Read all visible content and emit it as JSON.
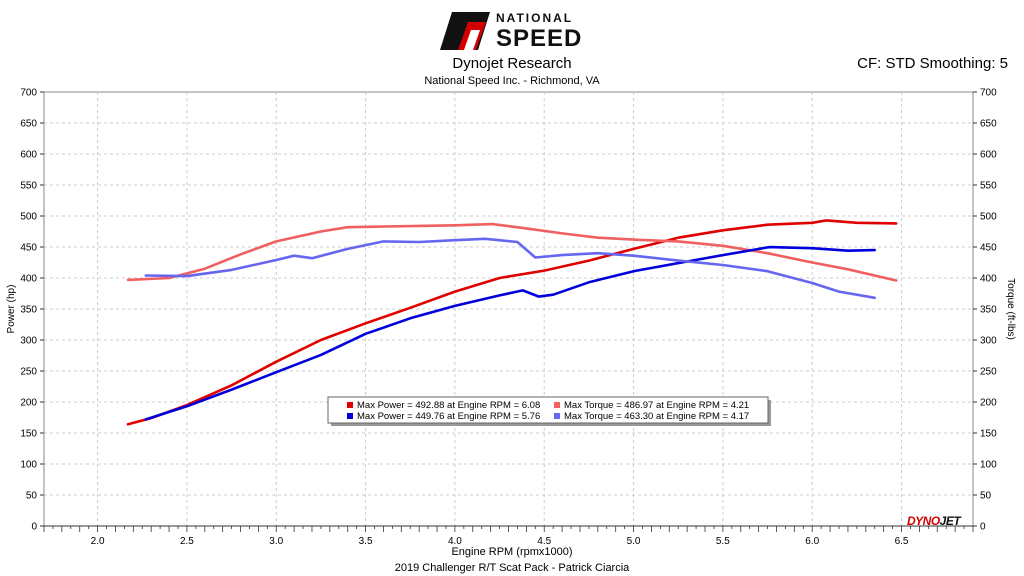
{
  "logo": {
    "line1": "NATIONAL",
    "line2": "SPEED"
  },
  "header": {
    "title": "Dynojet Research",
    "subtitle": "National Speed Inc. - Richmond, VA",
    "cf": "CF: STD Smoothing: 5"
  },
  "footer": "2019 Challenger R/T Scat Pack - Patrick Ciarcia",
  "brand": {
    "part1": "DYNO",
    "part2": "JET"
  },
  "colors": {
    "power1": "#e00000",
    "torque1": "#f06060",
    "power2": "#0000dd",
    "torque2": "#6666f0",
    "grid": "#cccccc",
    "legend_bg": "#ffffff"
  },
  "chart_data": {
    "type": "line",
    "xlabel": "Engine RPM (rpmx1000)",
    "ylabel_left": "Power (hp)",
    "ylabel_right": "Torque (ft-lbs)",
    "xlim": [
      1.7,
      6.9
    ],
    "ylim": [
      0,
      700
    ],
    "xticks": [
      2.0,
      2.5,
      3.0,
      3.5,
      4.0,
      4.5,
      5.0,
      5.5,
      6.0,
      6.5
    ],
    "xtick_labels": [
      "2.0",
      "2.5",
      "3.0",
      "3.5",
      "4.0",
      "4.5",
      "5.0",
      "5.5",
      "6.0",
      "6.5"
    ],
    "yticks": [
      0,
      50,
      100,
      150,
      200,
      250,
      300,
      350,
      400,
      450,
      500,
      550,
      600,
      650,
      700
    ],
    "ytick_labels": [
      "0",
      "50",
      "100",
      "150",
      "200",
      "250",
      "300",
      "350",
      "400",
      "450",
      "500",
      "550",
      "600",
      "650",
      "700"
    ],
    "grid": true,
    "legend": [
      "Max Power = 492.88 at Engine RPM = 6.08",
      "Max Torque = 486.97 at Engine RPM = 4.21",
      "Max Power = 449.76 at Engine RPM = 5.76",
      "Max Torque = 463.30 at Engine RPM = 4.17"
    ],
    "series": [
      {
        "key": "power1",
        "points": [
          [
            2.17,
            164
          ],
          [
            2.3,
            174
          ],
          [
            2.5,
            195
          ],
          [
            2.75,
            227
          ],
          [
            3.0,
            265
          ],
          [
            3.25,
            300
          ],
          [
            3.5,
            327
          ],
          [
            3.75,
            352
          ],
          [
            4.0,
            378
          ],
          [
            4.25,
            400
          ],
          [
            4.5,
            412
          ],
          [
            4.75,
            428
          ],
          [
            5.0,
            447
          ],
          [
            5.25,
            465
          ],
          [
            5.5,
            477
          ],
          [
            5.75,
            486
          ],
          [
            6.0,
            489
          ],
          [
            6.08,
            492.88
          ],
          [
            6.25,
            489
          ],
          [
            6.47,
            488
          ]
        ]
      },
      {
        "key": "torque1",
        "points": [
          [
            2.17,
            397
          ],
          [
            2.4,
            400
          ],
          [
            2.6,
            415
          ],
          [
            2.8,
            438
          ],
          [
            3.0,
            459
          ],
          [
            3.25,
            475
          ],
          [
            3.4,
            482
          ],
          [
            3.6,
            483
          ],
          [
            3.8,
            484
          ],
          [
            4.0,
            485
          ],
          [
            4.21,
            486.97
          ],
          [
            4.4,
            480
          ],
          [
            4.6,
            472
          ],
          [
            4.8,
            465
          ],
          [
            5.0,
            462
          ],
          [
            5.25,
            459
          ],
          [
            5.5,
            452
          ],
          [
            5.75,
            440
          ],
          [
            6.0,
            425
          ],
          [
            6.2,
            414
          ],
          [
            6.47,
            396
          ]
        ]
      },
      {
        "key": "power2",
        "points": [
          [
            2.27,
            172
          ],
          [
            2.5,
            193
          ],
          [
            2.75,
            220
          ],
          [
            3.0,
            248
          ],
          [
            3.25,
            276
          ],
          [
            3.5,
            310
          ],
          [
            3.75,
            335
          ],
          [
            4.0,
            355
          ],
          [
            4.25,
            372
          ],
          [
            4.38,
            380
          ],
          [
            4.47,
            370
          ],
          [
            4.55,
            373
          ],
          [
            4.75,
            393
          ],
          [
            5.0,
            411
          ],
          [
            5.25,
            424
          ],
          [
            5.5,
            437
          ],
          [
            5.76,
            449.76
          ],
          [
            6.0,
            448
          ],
          [
            6.2,
            444
          ],
          [
            6.35,
            445
          ]
        ]
      },
      {
        "key": "torque2",
        "points": [
          [
            2.27,
            404
          ],
          [
            2.5,
            403
          ],
          [
            2.75,
            413
          ],
          [
            3.0,
            429
          ],
          [
            3.1,
            436
          ],
          [
            3.2,
            432
          ],
          [
            3.4,
            447
          ],
          [
            3.6,
            459
          ],
          [
            3.8,
            458
          ],
          [
            4.0,
            461
          ],
          [
            4.17,
            463.3
          ],
          [
            4.35,
            458
          ],
          [
            4.45,
            433
          ],
          [
            4.6,
            437
          ],
          [
            4.8,
            440
          ],
          [
            5.0,
            436
          ],
          [
            5.25,
            428
          ],
          [
            5.5,
            421
          ],
          [
            5.75,
            411
          ],
          [
            6.0,
            392
          ],
          [
            6.15,
            378
          ],
          [
            6.35,
            368
          ]
        ]
      }
    ]
  }
}
